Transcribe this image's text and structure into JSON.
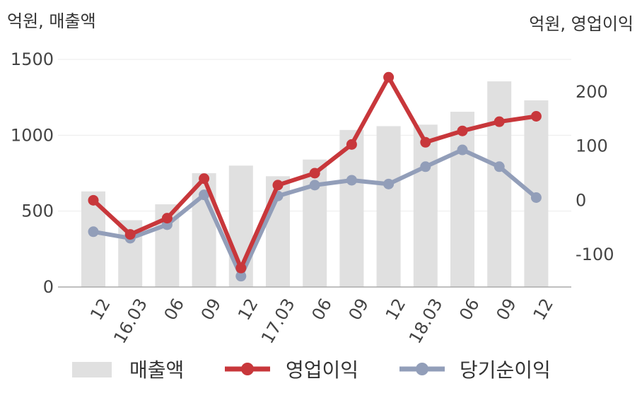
{
  "chart_data": {
    "type": "bar+line",
    "categories": [
      "12",
      "16.03",
      "06",
      "09",
      "12",
      "17.03",
      "06",
      "09",
      "12",
      "18.03",
      "06",
      "09",
      "12"
    ],
    "left_axis": {
      "unit_label": "억원, 매출액",
      "ylim": [
        0,
        1500
      ],
      "ticks": [
        "0",
        "500",
        "1000",
        "1500"
      ]
    },
    "right_axis": {
      "unit_label": "억원, 영업이익",
      "ylim": [
        -160,
        260
      ],
      "ticks": [
        "-100",
        "0",
        "100",
        "200"
      ]
    },
    "series": [
      {
        "name": "매출액",
        "type": "bar",
        "axis": "left",
        "color": "#e0e0e0",
        "values": [
          630,
          440,
          545,
          750,
          800,
          730,
          840,
          1035,
          1060,
          1070,
          1155,
          1355,
          1230
        ]
      },
      {
        "name": "영업이익",
        "type": "line",
        "axis": "right",
        "color": "#c8373b",
        "values": [
          0,
          -63,
          -33,
          40,
          -125,
          28,
          50,
          103,
          227,
          107,
          128,
          145,
          155
        ]
      },
      {
        "name": "당기순이익",
        "type": "line",
        "axis": "right",
        "color": "#929eb9",
        "values": [
          -58,
          -70,
          -45,
          10,
          -140,
          8,
          28,
          37,
          30,
          62,
          93,
          62,
          5
        ]
      }
    ],
    "grid": true,
    "legend_position": "bottom"
  }
}
